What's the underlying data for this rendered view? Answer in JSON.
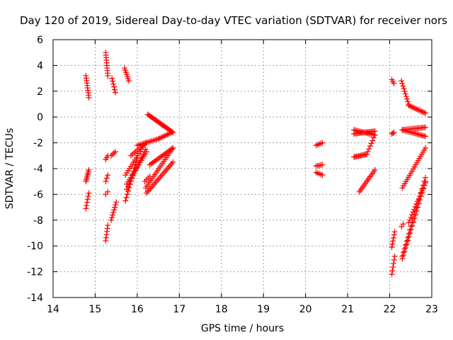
{
  "chart_data": {
    "type": "scatter",
    "title": "Day 120 of 2019, Sidereal Day-to-day VTEC variation (SDTVAR) for receiver nors",
    "xlabel": "GPS time / hours",
    "ylabel": "SDTVAR / TECUs",
    "xlim": [
      14,
      23
    ],
    "ylim": [
      -14,
      6
    ],
    "xticks": [
      "14",
      "15",
      "16",
      "17",
      "18",
      "19",
      "20",
      "21",
      "22",
      "23"
    ],
    "yticks": [
      "-14",
      "-12",
      "-10",
      "-8",
      "-6",
      "-4",
      "-2",
      "0",
      "2",
      "4",
      "6"
    ],
    "grid": true,
    "marker": "plus",
    "color": "#ff0000",
    "segments": [
      {
        "x0": 14.78,
        "x1": 14.85,
        "y0": 3.2,
        "y1": 1.5,
        "n": 10
      },
      {
        "x0": 14.78,
        "x1": 14.85,
        "y0": -5.0,
        "y1": -4.1,
        "n": 8
      },
      {
        "x0": 14.78,
        "x1": 14.85,
        "y0": -7.1,
        "y1": -5.9,
        "n": 6
      },
      {
        "x0": 15.25,
        "x1": 15.3,
        "y0": 5.0,
        "y1": 3.2,
        "n": 10
      },
      {
        "x0": 15.4,
        "x1": 15.48,
        "y0": 3.0,
        "y1": 1.9,
        "n": 6
      },
      {
        "x0": 15.25,
        "x1": 15.3,
        "y0": -9.6,
        "y1": -8.4,
        "n": 6
      },
      {
        "x0": 15.25,
        "x1": 15.3,
        "y0": -5.0,
        "y1": -4.5,
        "n": 3
      },
      {
        "x0": 15.25,
        "x1": 15.3,
        "y0": -3.3,
        "y1": -3.0,
        "n": 3
      },
      {
        "x0": 15.25,
        "x1": 15.3,
        "y0": -6.0,
        "y1": -5.8,
        "n": 2
      },
      {
        "x0": 15.38,
        "x1": 15.48,
        "y0": -3.0,
        "y1": -2.7,
        "n": 4
      },
      {
        "x0": 15.38,
        "x1": 15.5,
        "y0": -8.0,
        "y1": -6.6,
        "n": 8
      },
      {
        "x0": 15.7,
        "x1": 15.8,
        "y0": 3.8,
        "y1": 2.8,
        "n": 7
      },
      {
        "x0": 15.72,
        "x1": 16.0,
        "y0": -6.5,
        "y1": -3.2,
        "n": 14
      },
      {
        "x0": 15.72,
        "x1": 16.2,
        "y0": -4.5,
        "y1": -2.0,
        "n": 16
      },
      {
        "x0": 15.75,
        "x1": 16.2,
        "y0": -5.6,
        "y1": -2.5,
        "n": 16
      },
      {
        "x0": 15.75,
        "x1": 16.22,
        "y0": -5.2,
        "y1": -2.7,
        "n": 16
      },
      {
        "x0": 15.85,
        "x1": 16.2,
        "y0": -3.0,
        "y1": -2.0,
        "n": 10
      },
      {
        "x0": 16.0,
        "x1": 16.5,
        "y0": -2.2,
        "y1": -1.7,
        "n": 14
      },
      {
        "x0": 16.5,
        "x1": 16.82,
        "y0": -1.7,
        "y1": -1.2,
        "n": 10
      },
      {
        "x0": 16.18,
        "x1": 16.3,
        "y0": -5.0,
        "y1": -4.6,
        "n": 4
      },
      {
        "x0": 16.25,
        "x1": 16.85,
        "y0": 0.2,
        "y1": -1.2,
        "n": 24
      },
      {
        "x0": 16.22,
        "x1": 16.85,
        "y0": -5.9,
        "y1": -3.5,
        "n": 22
      },
      {
        "x0": 16.2,
        "x1": 16.85,
        "y0": -5.5,
        "y1": -2.4,
        "n": 22
      },
      {
        "x0": 16.3,
        "x1": 16.85,
        "y0": -3.7,
        "y1": -2.4,
        "n": 18
      },
      {
        "x0": 20.25,
        "x1": 20.4,
        "y0": -2.2,
        "y1": -2.0,
        "n": 5
      },
      {
        "x0": 20.25,
        "x1": 20.4,
        "y0": -3.8,
        "y1": -3.7,
        "n": 5
      },
      {
        "x0": 20.25,
        "x1": 20.4,
        "y0": -4.3,
        "y1": -4.5,
        "n": 5
      },
      {
        "x0": 21.15,
        "x1": 21.65,
        "y0": -1.3,
        "y1": -1.1,
        "n": 18
      },
      {
        "x0": 21.15,
        "x1": 21.65,
        "y0": -1.0,
        "y1": -1.4,
        "n": 16
      },
      {
        "x0": 21.15,
        "x1": 21.45,
        "y0": -3.1,
        "y1": -2.9,
        "n": 12
      },
      {
        "x0": 21.45,
        "x1": 21.65,
        "y0": -2.9,
        "y1": -1.4,
        "n": 8
      },
      {
        "x0": 21.28,
        "x1": 21.65,
        "y0": -5.8,
        "y1": -4.1,
        "n": 14
      },
      {
        "x0": 22.05,
        "x1": 22.1,
        "y0": 2.9,
        "y1": 2.6,
        "n": 3
      },
      {
        "x0": 22.28,
        "x1": 22.45,
        "y0": 2.8,
        "y1": 1.0,
        "n": 10
      },
      {
        "x0": 22.45,
        "x1": 22.85,
        "y0": 0.9,
        "y1": 0.3,
        "n": 14
      },
      {
        "x0": 22.05,
        "x1": 22.1,
        "y0": -1.3,
        "y1": -1.2,
        "n": 3
      },
      {
        "x0": 22.3,
        "x1": 22.85,
        "y0": -1.0,
        "y1": -0.8,
        "n": 18
      },
      {
        "x0": 22.3,
        "x1": 22.85,
        "y0": -1.0,
        "y1": -1.5,
        "n": 18
      },
      {
        "x0": 22.3,
        "x1": 22.85,
        "y0": -5.5,
        "y1": -2.4,
        "n": 20
      },
      {
        "x0": 22.05,
        "x1": 22.12,
        "y0": -12.2,
        "y1": -10.8,
        "n": 6
      },
      {
        "x0": 22.05,
        "x1": 22.12,
        "y0": -10.1,
        "y1": -8.9,
        "n": 6
      },
      {
        "x0": 22.3,
        "x1": 22.85,
        "y0": -11.0,
        "y1": -5.0,
        "n": 22
      },
      {
        "x0": 22.3,
        "x1": 22.85,
        "y0": -10.8,
        "y1": -4.7,
        "n": 22
      },
      {
        "x0": 22.28,
        "x1": 22.32,
        "y0": -8.5,
        "y1": -8.3,
        "n": 2
      },
      {
        "x0": 22.45,
        "x1": 22.85,
        "y0": -8.2,
        "y1": -5.1,
        "n": 16
      }
    ]
  }
}
